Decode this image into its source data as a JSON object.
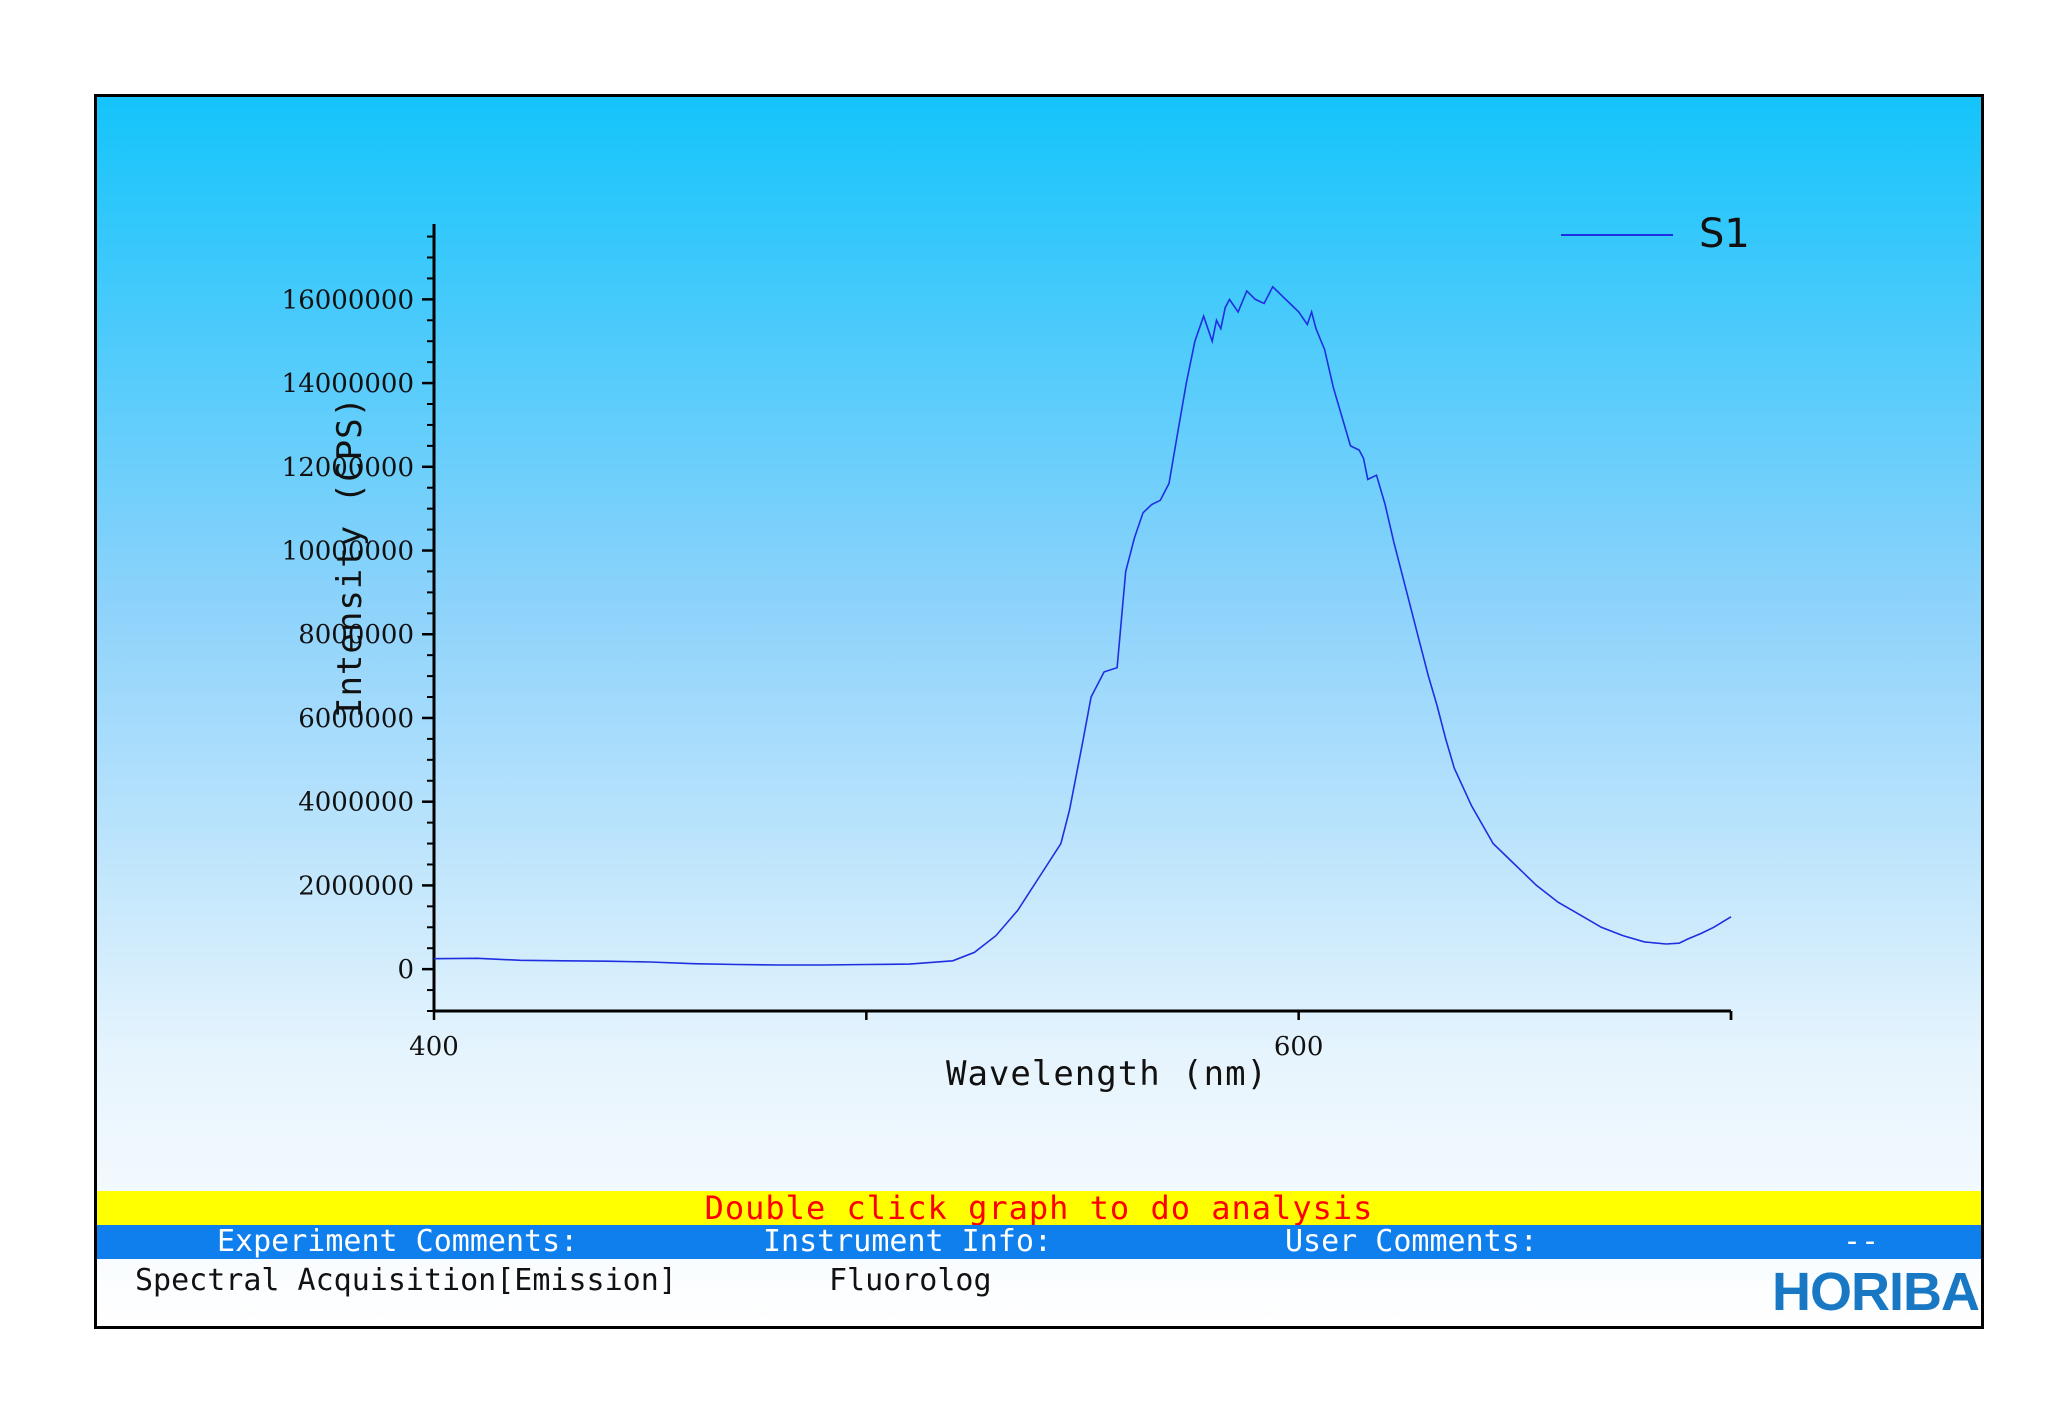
{
  "chart_data": {
    "type": "line",
    "title": "",
    "xlabel": "Wavelength (nm)",
    "ylabel": "Intensity (CPS)",
    "xlim": [
      400,
      700
    ],
    "ylim": [
      -1000000,
      17800000
    ],
    "x_ticks": [
      400,
      500,
      600,
      700
    ],
    "x_tick_labels": [
      "400",
      "",
      "600",
      ""
    ],
    "y_ticks": [
      0,
      2000000,
      4000000,
      6000000,
      8000000,
      10000000,
      12000000,
      14000000,
      16000000
    ],
    "y_tick_labels": [
      "0",
      "2000000",
      "4000000",
      "6000000",
      "8000000",
      "10000000",
      "12000000",
      "14000000",
      "16000000"
    ],
    "legend": {
      "position": "top-right",
      "entries": [
        "S1"
      ]
    },
    "grid": false,
    "series": [
      {
        "name": "S1",
        "color": "#1f2fe0",
        "x": [
          400,
          410,
          420,
          430,
          440,
          450,
          460,
          470,
          480,
          490,
          500,
          510,
          520,
          525,
          530,
          535,
          540,
          545,
          547,
          550,
          552,
          555,
          558,
          560,
          562,
          564,
          566,
          568,
          570,
          572,
          574,
          576,
          578,
          580,
          581,
          582,
          583,
          584,
          586,
          588,
          590,
          592,
          594,
          595,
          596,
          597,
          598,
          600,
          602,
          603,
          604,
          606,
          608,
          610,
          612,
          614,
          615,
          616,
          618,
          620,
          622,
          625,
          628,
          630,
          632,
          634,
          636,
          640,
          645,
          650,
          655,
          660,
          665,
          670,
          675,
          680,
          685,
          688,
          690,
          693,
          696,
          700
        ],
        "y": [
          250000,
          260000,
          210000,
          200000,
          190000,
          170000,
          130000,
          110000,
          100000,
          100000,
          110000,
          120000,
          200000,
          400000,
          800000,
          1400000,
          2200000,
          3000000,
          3800000,
          5400000,
          6500000,
          7100000,
          7200000,
          9500000,
          10300000,
          10900000,
          11100000,
          11200000,
          11600000,
          12800000,
          14000000,
          15000000,
          15600000,
          15000000,
          15500000,
          15300000,
          15800000,
          16000000,
          15700000,
          16200000,
          16000000,
          15900000,
          16300000,
          16200000,
          16100000,
          16000000,
          15900000,
          15700000,
          15400000,
          15700000,
          15300000,
          14800000,
          13900000,
          13200000,
          12500000,
          12400000,
          12200000,
          11700000,
          11800000,
          11100000,
          10200000,
          9000000,
          7800000,
          7000000,
          6300000,
          5500000,
          4800000,
          3900000,
          3000000,
          2500000,
          2000000,
          1600000,
          1300000,
          1000000,
          800000,
          650000,
          600000,
          620000,
          720000,
          850000,
          1000000,
          1250000
        ]
      }
    ]
  },
  "footer": {
    "analysis_hint": "Double click graph to do analysis",
    "experiment_comments_label": "Experiment Comments:",
    "instrument_info_label": "Instrument Info:",
    "user_comments_label": "User Comments:",
    "user_comments_value": "--",
    "experiment_comments_value": "Spectral Acquisition[Emission]",
    "instrument_info_value": "Fluorolog",
    "logo_text": "HORIBA"
  }
}
